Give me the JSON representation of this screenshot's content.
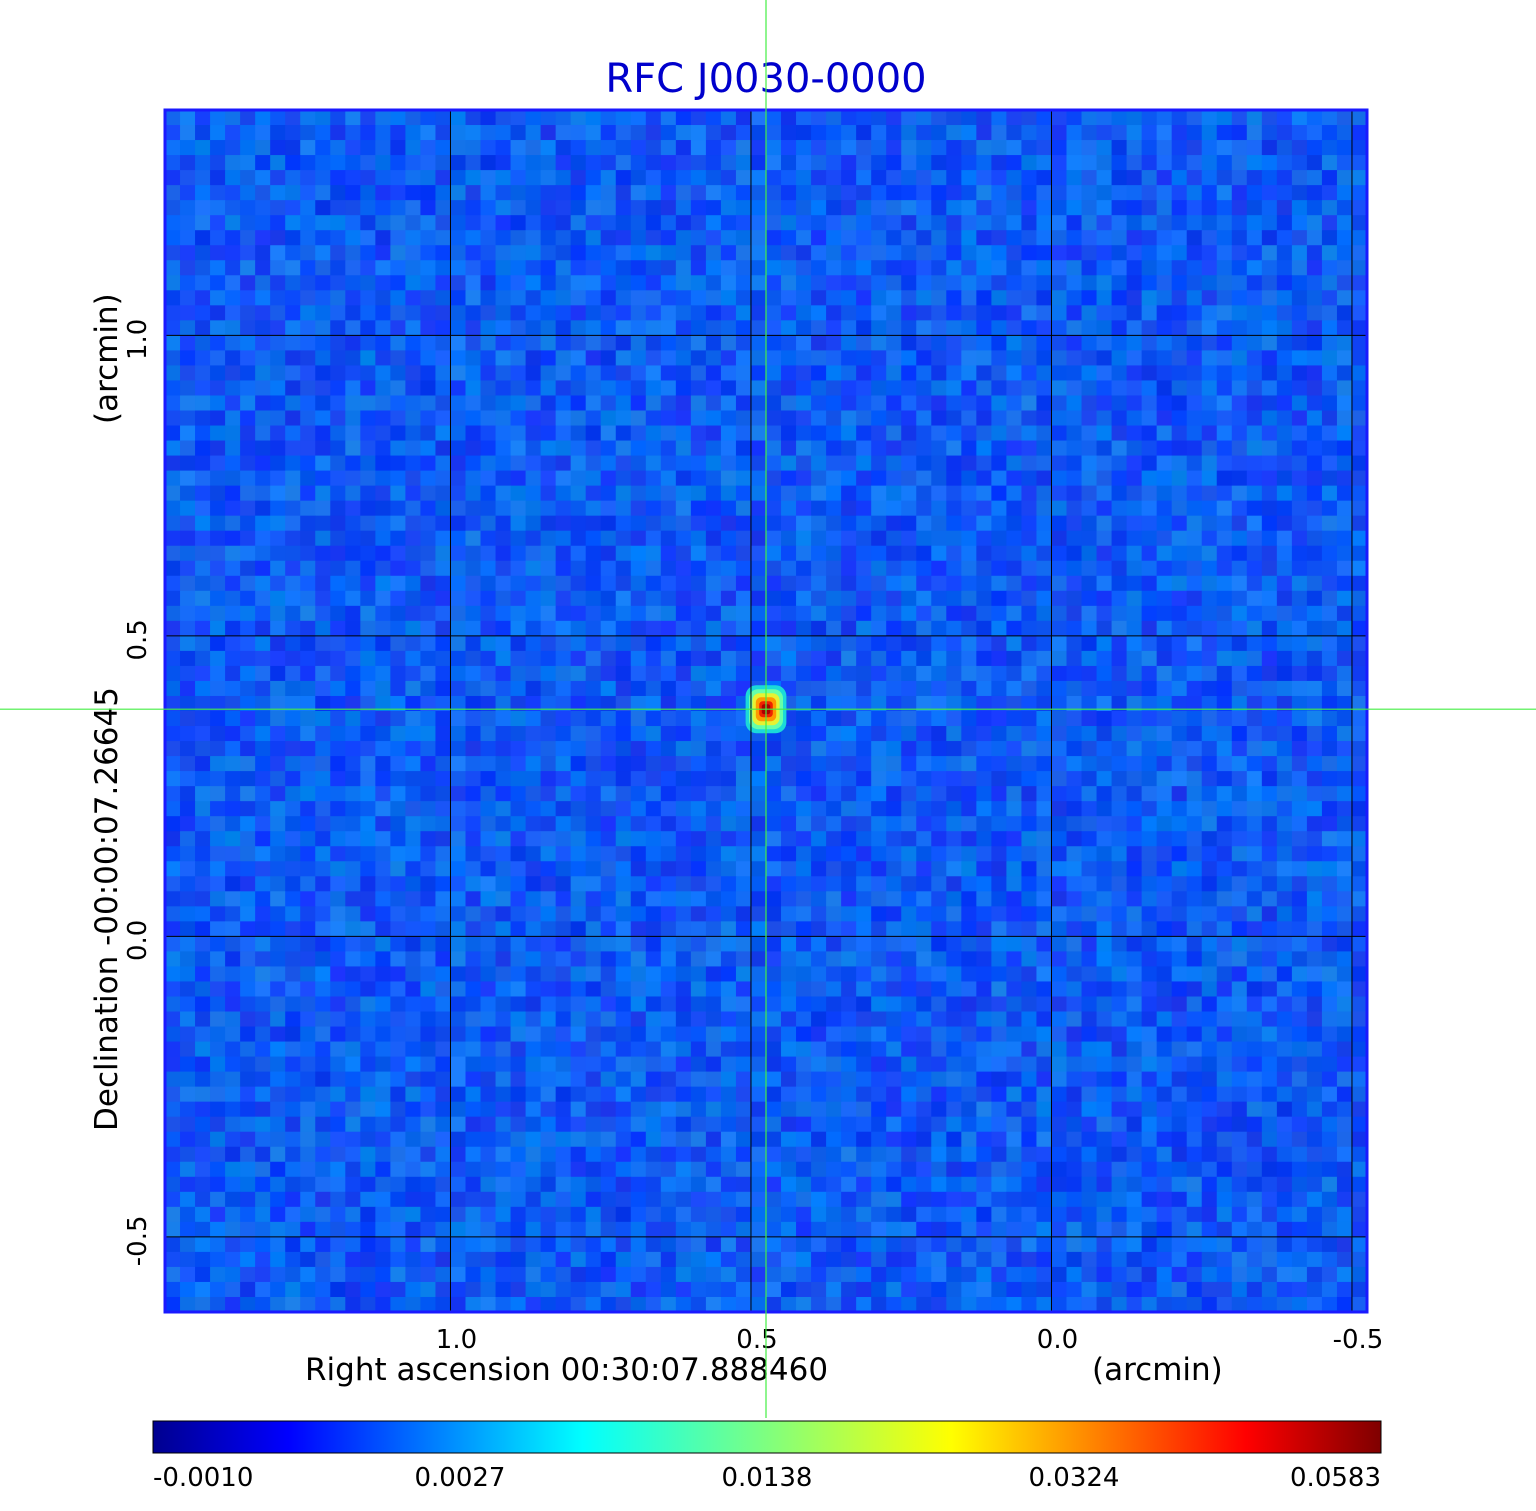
{
  "chart_data": {
    "type": "heatmap",
    "title": "RFC J0030-0000",
    "xlabel": "Right ascension  00:30:07.888460",
    "xunit": "(arcmin)",
    "ylabel": "Declination  -00:00:07.26645",
    "yunit": "(arcmin)",
    "xlim": [
      1.475,
      -0.525
    ],
    "ylim": [
      -0.625,
      1.375
    ],
    "x_ticks": [
      1.0,
      0.5,
      0.0,
      -0.5
    ],
    "x_tick_labels": [
      "1.0",
      "0.5",
      "0.0",
      "-0.5"
    ],
    "y_ticks": [
      -0.5,
      0.0,
      0.5,
      1.0
    ],
    "y_tick_labels": [
      "-0.5",
      "0.0",
      "0.5",
      "1.0"
    ],
    "grid": true,
    "crosshair": {
      "x": 0.475,
      "y": 0.378
    },
    "source_peak": {
      "x": 0.475,
      "y": 0.378,
      "value": 0.0583
    },
    "colorbar": {
      "colormap": "jet",
      "tick_labels": [
        "-0.0010",
        "0.0027",
        "0.0138",
        "0.0324",
        "0.0583"
      ],
      "tick_values": [
        -0.001,
        0.0027,
        0.0138,
        0.0324,
        0.0583
      ]
    },
    "colors": {
      "title": "#0000cc",
      "frame": "#1a1aff",
      "grid": "#000000",
      "crosshair": "#44ee44",
      "background_map": "#1a4dff"
    }
  }
}
